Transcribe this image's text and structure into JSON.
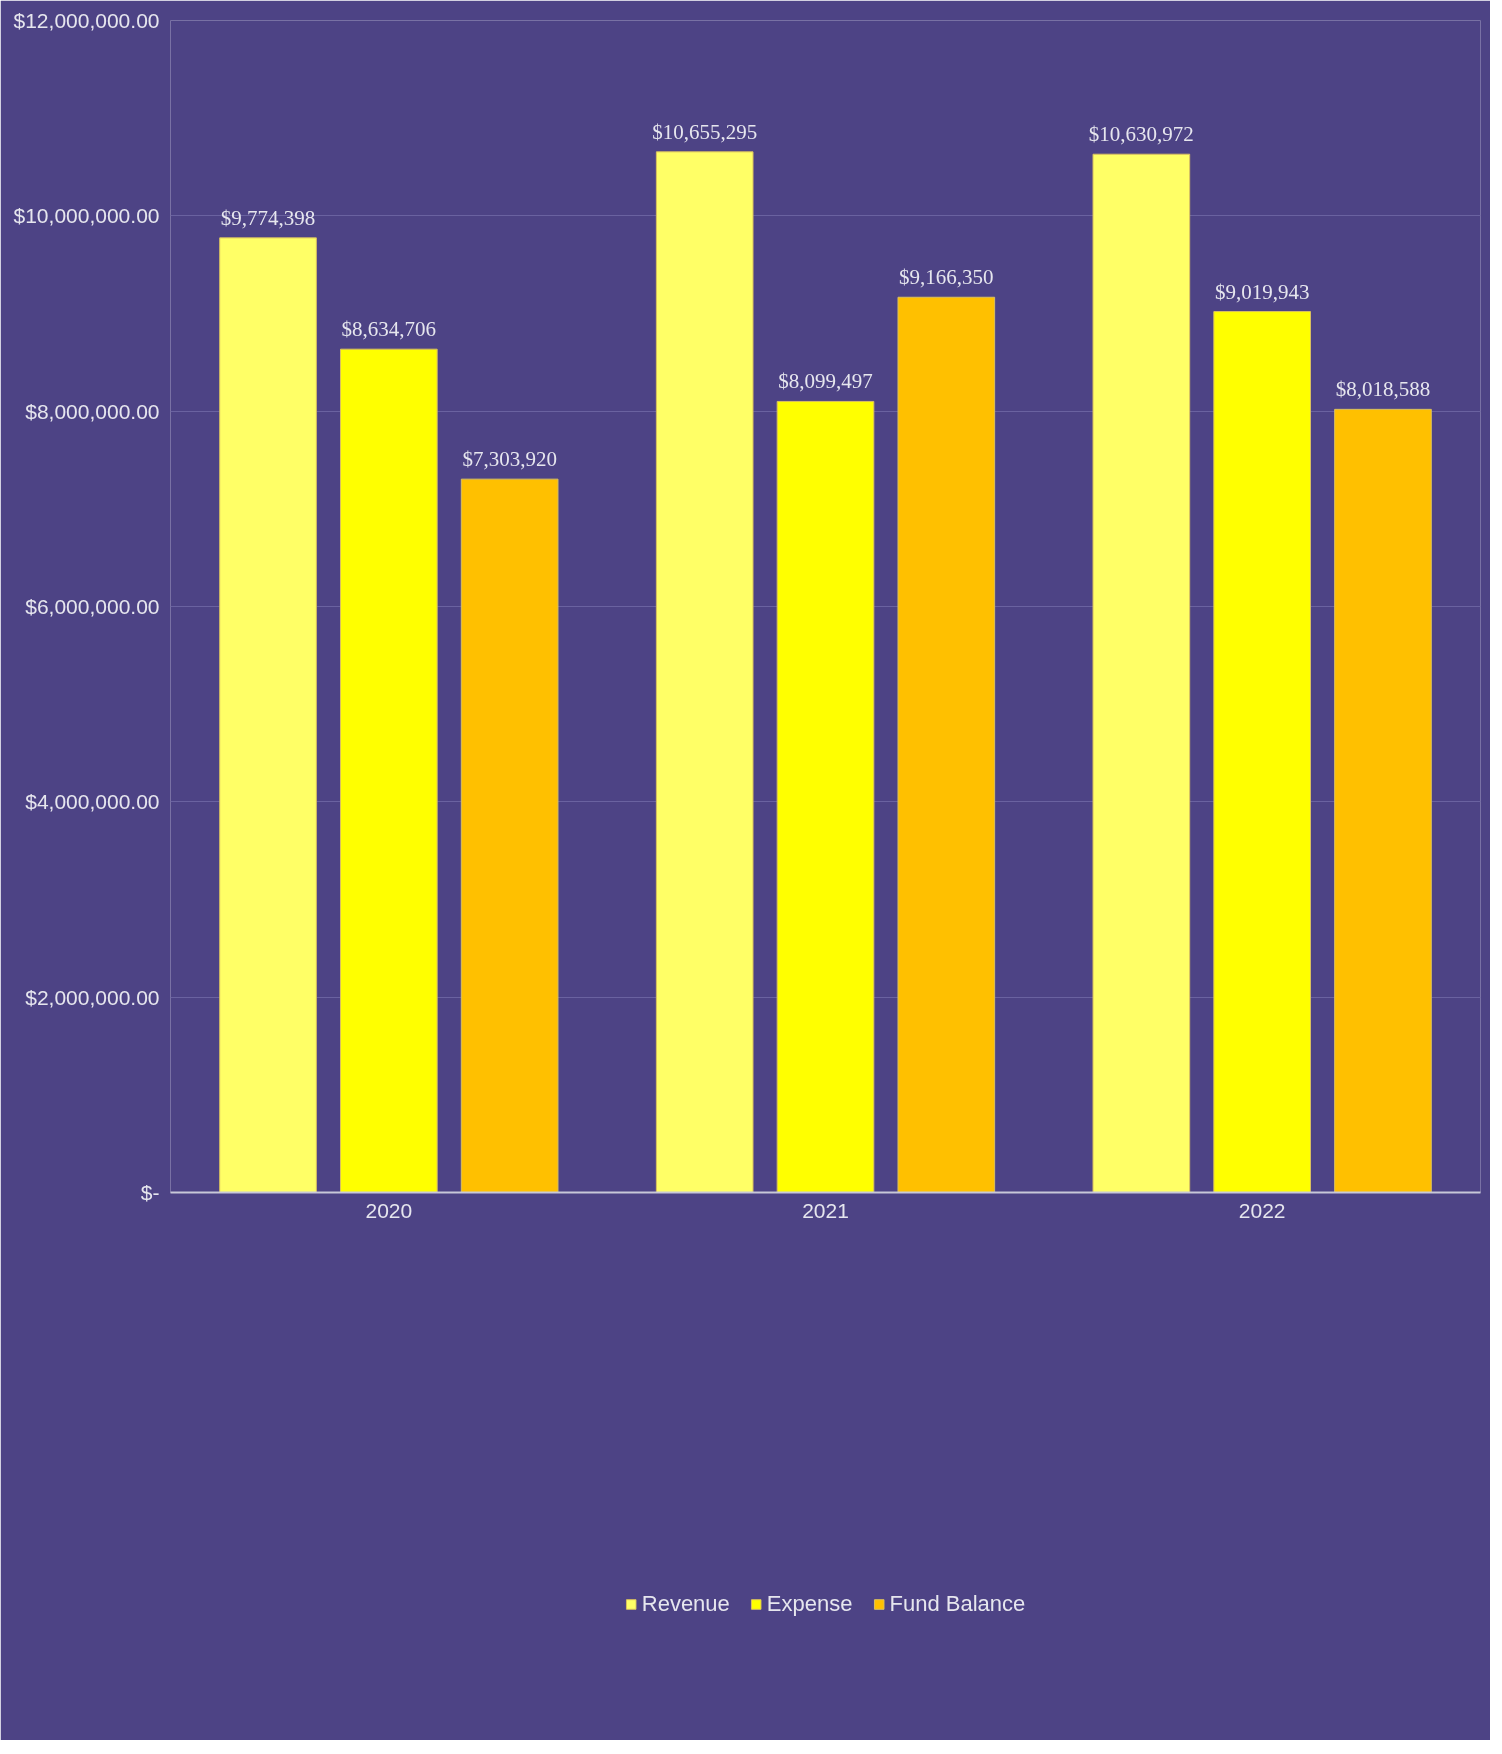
{
  "chart_data": {
    "type": "bar",
    "categories": [
      "2020",
      "2021",
      "2022"
    ],
    "series": [
      {
        "name": "Revenue",
        "color": "#ffff66",
        "values": [
          9774398,
          10655295,
          10630972
        ],
        "value_labels": [
          "$9,774,398",
          "$10,655,295",
          "$10,630,972"
        ]
      },
      {
        "name": "Expense",
        "color": "#ffff00",
        "values": [
          8634706,
          8099497,
          9019943
        ],
        "value_labels": [
          "$8,634,706",
          "$8,099,497",
          "$9,019,943"
        ]
      },
      {
        "name": "Fund Balance",
        "color": "#ffc000",
        "values": [
          7303920,
          9166350,
          8018588
        ],
        "value_labels": [
          "$7,303,920",
          "$9,166,350",
          "$8,018,588"
        ]
      }
    ],
    "ylim": [
      0,
      12000000
    ],
    "yticks": [
      {
        "value": 0,
        "label": "$-"
      },
      {
        "value": 2000000,
        "label": "$2,000,000.00"
      },
      {
        "value": 4000000,
        "label": "$4,000,000.00"
      },
      {
        "value": 6000000,
        "label": "$6,000,000.00"
      },
      {
        "value": 8000000,
        "label": "$8,000,000.00"
      },
      {
        "value": 10000000,
        "label": "$10,000,000.00"
      },
      {
        "value": 12000000,
        "label": "$12,000,000.00"
      }
    ],
    "grid": "y",
    "legend": "bottom"
  }
}
